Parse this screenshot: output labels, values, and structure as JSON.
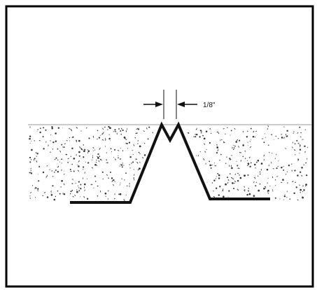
{
  "diagram": {
    "dimension_label": "1/8\"",
    "colors": {
      "line": "#111111",
      "border": "#000000",
      "surface_line": "#9a9a9a",
      "aggregate": "#333333",
      "background": "#ffffff"
    }
  }
}
